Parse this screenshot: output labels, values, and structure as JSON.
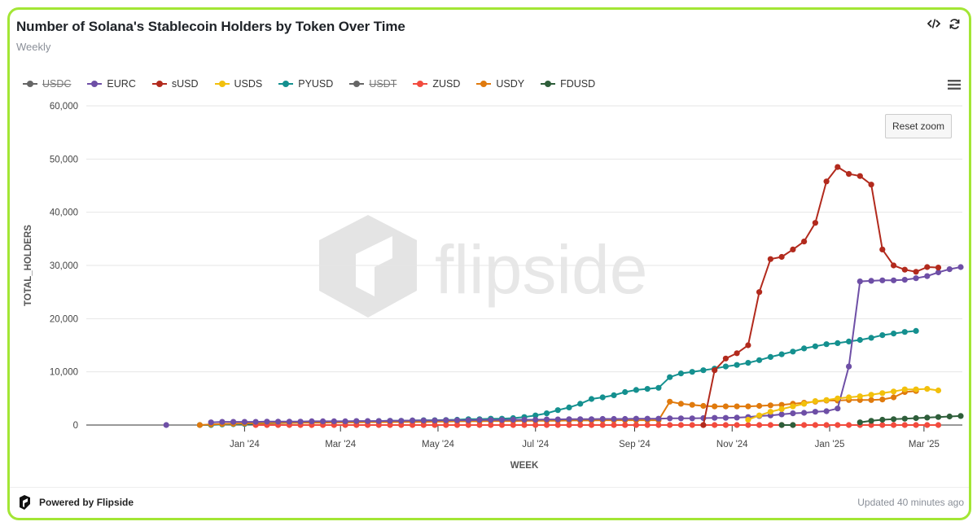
{
  "header": {
    "title": "Number of Solana's Stablecoin Holders by Token Over Time",
    "subtitle": "Weekly",
    "code_icon": "code-icon",
    "refresh_icon": "refresh-icon"
  },
  "toolbar": {
    "reset_zoom_label": "Reset zoom",
    "menu_icon": "hamburger-menu-icon"
  },
  "watermark": {
    "text": "flipside"
  },
  "footer": {
    "powered_by": "Powered by Flipside",
    "updated": "Updated 40 minutes ago"
  },
  "colors": {
    "card_border": "#a3e635",
    "grid": "#e6e6e6"
  },
  "chart_data": {
    "type": "line",
    "xlabel": "WEEK",
    "ylabel": "TOTAL_HOLDERS",
    "x_start": "2023-11-13",
    "x_step_days": 7,
    "x_ticks": [
      {
        "label": "Jan '24",
        "date": "2024-01-01"
      },
      {
        "label": "Mar '24",
        "date": "2024-03-01"
      },
      {
        "label": "May '24",
        "date": "2024-05-01"
      },
      {
        "label": "Jul '24",
        "date": "2024-07-01"
      },
      {
        "label": "Sep '24",
        "date": "2024-09-01"
      },
      {
        "label": "Nov '24",
        "date": "2024-11-01"
      },
      {
        "label": "Jan '25",
        "date": "2025-01-01"
      },
      {
        "label": "Mar '25",
        "date": "2025-03-01"
      }
    ],
    "y_ticks": [
      {
        "label": "0",
        "value": 0
      },
      {
        "label": "10,000",
        "value": 10000
      },
      {
        "label": "20,000",
        "value": 20000
      },
      {
        "label": "30,000",
        "value": 30000
      },
      {
        "label": "40,000",
        "value": 40000
      },
      {
        "label": "50,000",
        "value": 50000
      },
      {
        "label": "60,000",
        "value": 60000
      }
    ],
    "ylim": [
      0,
      60000
    ],
    "grid": true,
    "legend_position": "top-left",
    "series": [
      {
        "name": "USDC",
        "color": "#666666",
        "hidden": true,
        "start": 0,
        "values": []
      },
      {
        "name": "EURC",
        "color": "#6e4fa6",
        "hidden": false,
        "start": 0,
        "values": [
          0,
          null,
          null,
          null,
          500,
          600,
          600,
          600,
          600,
          650,
          650,
          650,
          650,
          700,
          700,
          700,
          700,
          750,
          750,
          750,
          800,
          800,
          850,
          850,
          850,
          900,
          900,
          900,
          950,
          950,
          950,
          1000,
          1000,
          1000,
          1050,
          1050,
          1100,
          1100,
          1100,
          1150,
          1150,
          1150,
          1200,
          1200,
          1200,
          1250,
          1250,
          1250,
          1300,
          1350,
          1350,
          1400,
          1500,
          1700,
          1800,
          2000,
          2200,
          2300,
          2500,
          2600,
          3100,
          11000,
          27000,
          27100,
          27200,
          27200,
          27300,
          27600,
          28000,
          28700,
          29300,
          29700
        ]
      },
      {
        "name": "sUSD",
        "color": "#b22a1d",
        "hidden": false,
        "start": 48,
        "values": [
          0,
          10300,
          12500,
          13500,
          15000,
          25000,
          31200,
          31600,
          33000,
          34500,
          38000,
          45800,
          48500,
          47200,
          46800,
          45200,
          33000,
          30000,
          29200,
          28800,
          29700,
          29600
        ]
      },
      {
        "name": "USDS",
        "color": "#f2c00c",
        "hidden": false,
        "start": 52,
        "values": [
          1000,
          1800,
          2500,
          3000,
          3500,
          4000,
          4500,
          4700,
          5000,
          5200,
          5400,
          5700,
          6000,
          6300,
          6700,
          6700,
          6800,
          6500
        ]
      },
      {
        "name": "PYUSD",
        "color": "#14908f",
        "hidden": false,
        "start": 3,
        "values": [
          0,
          0,
          100,
          150,
          200,
          250,
          300,
          350,
          400,
          450,
          500,
          550,
          600,
          650,
          700,
          700,
          750,
          800,
          800,
          850,
          900,
          900,
          950,
          1000,
          1100,
          1100,
          1200,
          1200,
          1300,
          1500,
          1800,
          2200,
          2800,
          3300,
          4000,
          4900,
          5200,
          5600,
          6200,
          6600,
          6800,
          7000,
          9000,
          9700,
          10000,
          10300,
          10600,
          11000,
          11300,
          11700,
          12200,
          12800,
          13300,
          13800,
          14400,
          14800,
          15200,
          15400,
          15700,
          16000,
          16400,
          16900,
          17200,
          17500,
          17700
        ]
      },
      {
        "name": "USDT",
        "color": "#666666",
        "hidden": true,
        "start": 0,
        "values": []
      },
      {
        "name": "ZUSD",
        "color": "#f24b3e",
        "hidden": false,
        "start": 8,
        "values": [
          0,
          0,
          0,
          0,
          0,
          0,
          0,
          0,
          0,
          0,
          0,
          0,
          0,
          0,
          0,
          0,
          0,
          0,
          0,
          0,
          0,
          0,
          0,
          0,
          0,
          0,
          0,
          0,
          0,
          0,
          0,
          0,
          0,
          0,
          0,
          0,
          0,
          0,
          0,
          0,
          0,
          0,
          0,
          0,
          0,
          0,
          0,
          0,
          0,
          0,
          0,
          0,
          0,
          0,
          0,
          0,
          0,
          0,
          0,
          0,
          0,
          0,
          null,
          null,
          null,
          null,
          null,
          0
        ]
      },
      {
        "name": "USDY",
        "color": "#e07a0d",
        "hidden": false,
        "start": 3,
        "values": [
          0,
          100,
          200,
          250,
          300,
          350,
          350,
          400,
          400,
          450,
          450,
          450,
          500,
          500,
          500,
          550,
          550,
          550,
          600,
          600,
          600,
          650,
          650,
          700,
          700,
          700,
          750,
          750,
          750,
          800,
          800,
          800,
          800,
          850,
          850,
          850,
          900,
          900,
          900,
          900,
          900,
          900,
          4400,
          4000,
          3800,
          3600,
          3500,
          3500,
          3500,
          3500,
          3600,
          3700,
          3800,
          4000,
          4200,
          4400,
          4600,
          4600,
          4700,
          4700,
          4700,
          4800,
          5200,
          6200,
          6400
        ]
      },
      {
        "name": "FDUSD",
        "color": "#2e5e3a",
        "hidden": false,
        "start": 55,
        "values": [
          0,
          0,
          null,
          null,
          null,
          null,
          null,
          500,
          800,
          1000,
          1100,
          1200,
          1300,
          1400,
          1500,
          1600,
          1700
        ]
      }
    ]
  }
}
